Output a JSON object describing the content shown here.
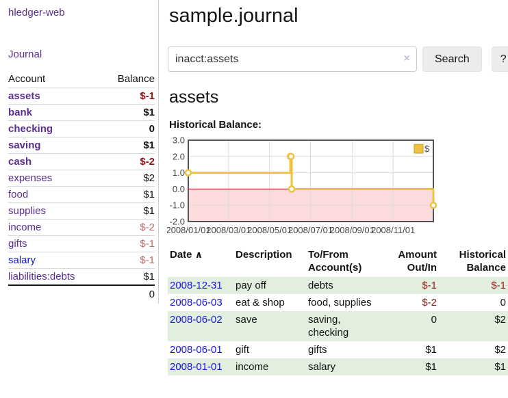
{
  "sidebar": {
    "brand": "hledger-web",
    "journal_label": "Journal",
    "accounts_table": {
      "headers": [
        "Account",
        "Balance"
      ],
      "rows": [
        {
          "account": "assets",
          "balance": "$-1",
          "depth": 1,
          "bold": true,
          "neg": "negstrong"
        },
        {
          "account": "bank",
          "balance": "$1",
          "depth": 2,
          "bold": true
        },
        {
          "account": "checking",
          "balance": "0",
          "depth": 3,
          "bold": true
        },
        {
          "account": "saving",
          "balance": "$1",
          "depth": 3,
          "bold": true
        },
        {
          "account": "cash",
          "balance": "$-2",
          "depth": 2,
          "bold": true,
          "neg": "negstrong"
        },
        {
          "account": "expenses",
          "balance": "$2",
          "depth": 1
        },
        {
          "account": "food",
          "balance": "$1",
          "depth": 2
        },
        {
          "account": "supplies",
          "balance": "$1",
          "depth": 2
        },
        {
          "account": "income",
          "balance": "$-2",
          "depth": 1,
          "neg": "negsoft"
        },
        {
          "account": "gifts",
          "balance": "$-1",
          "depth": 2,
          "neg": "negsoft"
        },
        {
          "account": "salary",
          "balance": "$-1",
          "depth": 2,
          "neg": "negsoft",
          "link": "blue"
        },
        {
          "account": "liabilities:debts",
          "balance": "$1",
          "depth": 1
        }
      ],
      "total": "0"
    }
  },
  "header": {
    "title": "sample.journal"
  },
  "search": {
    "value": "inacct:assets",
    "clear_icon": "×",
    "button_label": "Search",
    "help_label": "?"
  },
  "account_page": {
    "heading": "assets",
    "chart_label": "Historical Balance:"
  },
  "chart_data": {
    "type": "line",
    "title": "Historical Balance",
    "legend": "$",
    "legend_position": "top-right",
    "line_color": "#edc240",
    "marker_style": "open-circle",
    "step": true,
    "grid": true,
    "border_color": "#545454",
    "gridline_color": "#dcdcdc",
    "zero_line_color": "#a40000",
    "negative_region_color": "#fbdbdb",
    "axis_text_color": "#444444",
    "x_range": [
      "2008-01-01",
      "2008-12-31"
    ],
    "ylim": [
      -2,
      3
    ],
    "y_ticks": [
      "3.0",
      "2.0",
      "1.0",
      "0.0",
      "-1.0",
      "-2.0"
    ],
    "x_ticks": [
      "2008/01/01",
      "2008/03/01",
      "2008/05/01",
      "2008/07/01",
      "2008/09/01",
      "2008/11/01"
    ],
    "series": [
      {
        "name": "$",
        "points": [
          [
            "2008-01-01",
            1
          ],
          [
            "2008-06-01",
            2
          ],
          [
            "2008-06-02",
            2
          ],
          [
            "2008-06-03",
            0
          ],
          [
            "2008-12-31",
            -1
          ]
        ]
      }
    ]
  },
  "register": {
    "headers": [
      "Date",
      "Description",
      "To/From Account(s)",
      "Amount Out/In",
      "Historical Balance"
    ],
    "sort_icon": "∧",
    "rows": [
      {
        "date": "2008-12-31",
        "description": "pay off",
        "accounts": "debts",
        "amount": "$-1",
        "amount_neg": true,
        "balance": "$-1",
        "balance_neg": true
      },
      {
        "date": "2008-06-03",
        "description": "eat & shop",
        "accounts": "food, supplies",
        "amount": "$-2",
        "amount_neg": true,
        "balance": "0"
      },
      {
        "date": "2008-06-02",
        "description": "save",
        "accounts": "saving, checking",
        "amount": "0",
        "balance": "$2"
      },
      {
        "date": "2008-06-01",
        "description": "gift",
        "accounts": "gifts",
        "amount": "$1",
        "balance": "$2"
      },
      {
        "date": "2008-01-01",
        "description": "income",
        "accounts": "salary",
        "amount": "$1",
        "balance": "$1"
      }
    ]
  }
}
